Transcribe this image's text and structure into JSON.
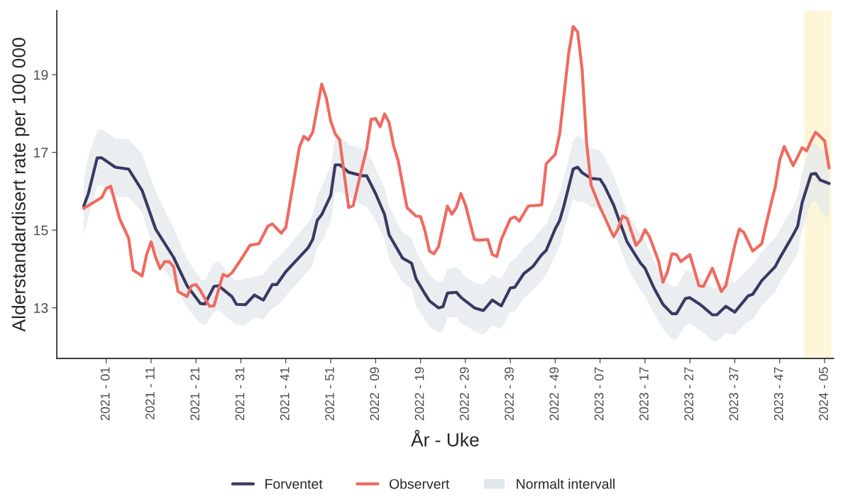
{
  "chart_data": {
    "type": "line",
    "xlabel": "År - Uke",
    "ylabel": "Alderstandardisert rate per 100 000",
    "xlim": [
      "2020-10-19",
      "2024-02-12"
    ],
    "ylim": [
      11.7,
      20.65
    ],
    "yticks": [
      13,
      15,
      17,
      19
    ],
    "xticks": [
      {
        "value": "2021-01-04",
        "label": "2021 - 01"
      },
      {
        "value": "2021-03-15",
        "label": "2021 - 11"
      },
      {
        "value": "2021-05-24",
        "label": "2021 - 21"
      },
      {
        "value": "2021-08-02",
        "label": "2021 - 31"
      },
      {
        "value": "2021-10-11",
        "label": "2021 - 41"
      },
      {
        "value": "2021-12-20",
        "label": "2021 - 51"
      },
      {
        "value": "2022-02-28",
        "label": "2022 - 09"
      },
      {
        "value": "2022-05-09",
        "label": "2022 - 19"
      },
      {
        "value": "2022-07-18",
        "label": "2022 - 29"
      },
      {
        "value": "2022-09-26",
        "label": "2022 - 39"
      },
      {
        "value": "2022-12-05",
        "label": "2022 - 49"
      },
      {
        "value": "2023-02-13",
        "label": "2023 - 07"
      },
      {
        "value": "2023-04-24",
        "label": "2023 - 17"
      },
      {
        "value": "2023-07-03",
        "label": "2023 - 27"
      },
      {
        "value": "2023-09-11",
        "label": "2023 - 37"
      },
      {
        "value": "2023-11-20",
        "label": "2023 - 47"
      },
      {
        "value": "2024-01-29",
        "label": "2024 - 05"
      }
    ],
    "annotations": [
      "Normalt intervall"
    ],
    "grid": false,
    "legend": "bottom",
    "line_style": "solid",
    "marker": "none",
    "bands": [
      {
        "axis": "x",
        "from": "2023-12-28T12:00",
        "to": "2024-02-08T12:00",
        "color": "#fdf6d8"
      }
    ],
    "series": [
      {
        "name": "Forventet",
        "color": "#383a63",
        "x": [
          "2020-11-30",
          "2020-12-07",
          "2020-12-21",
          "2020-12-28",
          "2021-01-18",
          "2021-02-08",
          "2021-03-01",
          "2021-03-22",
          "2021-04-19",
          "2021-05-10",
          "2021-05-31",
          "2021-06-07",
          "2021-06-21",
          "2021-06-28",
          "2021-07-19",
          "2021-07-26",
          "2021-08-09",
          "2021-08-23",
          "2021-09-06",
          "2021-09-20",
          "2021-09-27",
          "2021-10-11",
          "2021-11-15",
          "2021-11-22",
          "2021-11-29",
          "2021-12-06",
          "2021-12-20",
          "2021-12-27",
          "2022-01-03",
          "2022-01-17",
          "2022-02-07",
          "2022-02-14",
          "2022-02-28",
          "2022-03-14",
          "2022-03-21",
          "2022-04-11",
          "2022-04-25",
          "2022-05-02",
          "2022-05-16",
          "2022-05-23",
          "2022-06-06",
          "2022-06-13",
          "2022-06-20",
          "2022-07-04",
          "2022-07-11",
          "2022-07-18",
          "2022-08-01",
          "2022-08-15",
          "2022-08-29",
          "2022-09-12",
          "2022-09-26",
          "2022-10-03",
          "2022-10-17",
          "2022-10-31",
          "2022-11-14",
          "2022-11-21",
          "2022-12-05",
          "2022-12-12",
          "2022-12-19",
          "2023-01-02",
          "2023-01-09",
          "2023-01-16",
          "2023-01-30",
          "2023-02-13",
          "2023-02-20",
          "2023-03-06",
          "2023-03-27",
          "2023-04-17",
          "2023-04-24",
          "2023-05-08",
          "2023-05-22",
          "2023-06-05",
          "2023-06-12",
          "2023-06-26",
          "2023-07-03",
          "2023-07-17",
          "2023-07-24",
          "2023-08-07",
          "2023-08-14",
          "2023-08-28",
          "2023-09-11",
          "2023-10-02",
          "2023-10-09",
          "2023-10-23",
          "2023-11-13",
          "2023-11-20",
          "2023-12-11",
          "2023-12-18",
          "2023-12-25",
          "2024-01-08",
          "2024-01-15",
          "2024-01-22",
          "2024-02-05"
        ],
        "values": [
          15.62,
          15.93,
          16.86,
          16.86,
          16.62,
          16.57,
          16.02,
          15.03,
          14.3,
          13.57,
          13.11,
          13.1,
          13.55,
          13.57,
          13.29,
          13.09,
          13.08,
          13.33,
          13.2,
          13.6,
          13.6,
          13.93,
          14.55,
          14.76,
          15.25,
          15.4,
          15.89,
          16.68,
          16.68,
          16.49,
          16.4,
          16.4,
          15.94,
          15.4,
          14.88,
          14.28,
          14.15,
          13.75,
          13.36,
          13.18,
          13.0,
          13.03,
          13.38,
          13.4,
          13.27,
          13.18,
          13.0,
          12.93,
          13.2,
          13.05,
          13.51,
          13.53,
          13.88,
          14.06,
          14.37,
          14.48,
          15.03,
          15.25,
          15.65,
          16.57,
          16.62,
          16.48,
          16.33,
          16.31,
          16.13,
          15.65,
          14.7,
          14.15,
          14.02,
          13.51,
          13.09,
          12.85,
          12.85,
          13.24,
          13.26,
          13.11,
          13.02,
          12.82,
          12.82,
          13.04,
          12.89,
          13.31,
          13.35,
          13.7,
          14.06,
          14.28,
          14.88,
          15.1,
          15.71,
          16.44,
          16.46,
          16.29,
          16.2
        ],
        "upper": [
          16.3,
          16.9,
          17.55,
          17.6,
          17.35,
          17.35,
          16.95,
          16.0,
          15.05,
          14.25,
          13.75,
          13.7,
          14.15,
          14.2,
          13.75,
          13.7,
          13.75,
          13.8,
          13.85,
          14.2,
          14.25,
          14.5,
          15.2,
          15.4,
          15.9,
          16.1,
          16.65,
          17.35,
          17.45,
          17.2,
          17.1,
          17.05,
          16.6,
          16.1,
          15.6,
          14.95,
          14.8,
          14.45,
          14.05,
          13.85,
          13.65,
          13.7,
          14.0,
          14.05,
          13.95,
          13.8,
          13.65,
          13.6,
          13.85,
          13.75,
          14.2,
          14.25,
          14.55,
          14.75,
          15.05,
          15.15,
          15.7,
          15.95,
          16.4,
          17.3,
          17.45,
          17.35,
          17.1,
          17.05,
          16.9,
          16.4,
          15.45,
          14.9,
          14.75,
          14.2,
          13.75,
          13.55,
          13.55,
          13.95,
          13.95,
          13.8,
          13.7,
          13.5,
          13.5,
          13.7,
          13.65,
          14.0,
          14.1,
          14.45,
          14.8,
          15.0,
          15.6,
          15.85,
          16.5,
          17.2,
          17.25,
          17.1,
          16.95
        ],
        "lower": [
          14.9,
          15.3,
          16.15,
          16.15,
          15.85,
          15.85,
          15.45,
          14.3,
          13.65,
          13.0,
          12.6,
          12.55,
          12.9,
          12.95,
          12.65,
          12.55,
          12.55,
          12.75,
          12.7,
          13.0,
          13.05,
          13.3,
          13.95,
          14.1,
          14.55,
          14.7,
          15.2,
          15.95,
          16.0,
          15.85,
          15.65,
          15.6,
          15.25,
          14.75,
          14.25,
          13.65,
          13.5,
          13.05,
          12.7,
          12.5,
          12.36,
          12.4,
          12.75,
          12.75,
          12.6,
          12.55,
          12.4,
          12.3,
          12.55,
          12.45,
          12.9,
          12.9,
          13.25,
          13.45,
          13.7,
          13.85,
          14.35,
          14.6,
          15.0,
          15.8,
          15.72,
          15.75,
          15.6,
          15.55,
          15.45,
          15.0,
          14.05,
          13.45,
          13.3,
          12.85,
          12.45,
          12.2,
          12.2,
          12.55,
          12.6,
          12.45,
          12.35,
          12.15,
          12.15,
          12.35,
          12.3,
          12.65,
          12.7,
          13.05,
          13.4,
          13.65,
          14.2,
          14.4,
          15.0,
          15.7,
          15.75,
          15.5,
          15.3
        ]
      },
      {
        "name": "Observert",
        "color": "#ef6a60",
        "x": [
          "2020-11-30",
          "2020-12-28",
          "2021-01-04",
          "2021-01-11",
          "2021-01-25",
          "2021-02-08",
          "2021-02-15",
          "2021-03-01",
          "2021-03-08",
          "2021-03-15",
          "2021-03-22",
          "2021-03-29",
          "2021-04-05",
          "2021-04-12",
          "2021-04-19",
          "2021-04-26",
          "2021-05-10",
          "2021-05-17",
          "2021-05-24",
          "2021-05-31",
          "2021-06-14",
          "2021-06-21",
          "2021-07-05",
          "2021-07-12",
          "2021-07-19",
          "2021-08-02",
          "2021-08-16",
          "2021-08-30",
          "2021-09-13",
          "2021-09-20",
          "2021-10-04",
          "2021-10-11",
          "2021-11-01",
          "2021-11-08",
          "2021-11-15",
          "2021-11-22",
          "2021-12-06",
          "2021-12-13",
          "2021-12-20",
          "2021-12-27",
          "2022-01-03",
          "2022-01-17",
          "2022-01-24",
          "2022-02-07",
          "2022-02-14",
          "2022-02-21",
          "2022-02-28",
          "2022-03-07",
          "2022-03-14",
          "2022-03-21",
          "2022-03-28",
          "2022-04-04",
          "2022-04-18",
          "2022-05-02",
          "2022-05-09",
          "2022-05-16",
          "2022-05-23",
          "2022-05-30",
          "2022-06-06",
          "2022-06-20",
          "2022-06-27",
          "2022-07-04",
          "2022-07-11",
          "2022-07-18",
          "2022-08-01",
          "2022-08-08",
          "2022-08-22",
          "2022-08-29",
          "2022-09-05",
          "2022-09-12",
          "2022-09-26",
          "2022-10-03",
          "2022-10-10",
          "2022-10-24",
          "2022-11-14",
          "2022-11-21",
          "2022-12-05",
          "2022-12-12",
          "2022-12-26",
          "2023-01-02",
          "2023-01-09",
          "2023-01-16",
          "2023-01-23",
          "2023-01-30",
          "2023-02-13",
          "2023-02-20",
          "2023-03-06",
          "2023-03-13",
          "2023-03-20",
          "2023-03-27",
          "2023-04-10",
          "2023-04-17",
          "2023-04-24",
          "2023-05-01",
          "2023-05-15",
          "2023-05-22",
          "2023-05-29",
          "2023-06-05",
          "2023-06-12",
          "2023-06-19",
          "2023-07-03",
          "2023-07-17",
          "2023-07-24",
          "2023-08-07",
          "2023-08-21",
          "2023-08-28",
          "2023-09-11",
          "2023-09-18",
          "2023-09-25",
          "2023-10-09",
          "2023-10-23",
          "2023-10-30",
          "2023-11-06",
          "2023-11-13",
          "2023-11-20",
          "2023-11-27",
          "2023-12-11",
          "2023-12-25",
          "2024-01-01",
          "2024-01-08",
          "2024-01-15",
          "2024-01-29",
          "2024-02-05"
        ],
        "values": [
          15.56,
          15.84,
          16.07,
          16.13,
          15.29,
          14.79,
          13.97,
          13.82,
          14.37,
          14.7,
          14.3,
          14.01,
          14.19,
          14.19,
          14.06,
          13.42,
          13.29,
          13.57,
          13.6,
          13.44,
          13.04,
          13.05,
          13.86,
          13.81,
          13.9,
          14.24,
          14.61,
          14.65,
          15.1,
          15.16,
          14.92,
          15.07,
          17.12,
          17.41,
          17.32,
          17.52,
          18.76,
          18.41,
          17.81,
          17.48,
          17.32,
          15.58,
          15.63,
          16.62,
          17.08,
          17.85,
          17.87,
          17.66,
          17.99,
          17.77,
          17.17,
          16.8,
          15.58,
          15.36,
          15.35,
          14.98,
          14.46,
          14.39,
          14.57,
          15.62,
          15.41,
          15.58,
          15.94,
          15.65,
          14.76,
          14.74,
          14.76,
          14.37,
          14.32,
          14.76,
          15.29,
          15.34,
          15.23,
          15.62,
          15.65,
          16.71,
          16.95,
          17.48,
          19.55,
          20.24,
          20.1,
          19.13,
          17.23,
          16.16,
          15.58,
          15.34,
          14.83,
          15.03,
          15.36,
          15.3,
          14.61,
          14.74,
          15.01,
          14.83,
          14.21,
          13.66,
          13.93,
          14.39,
          14.37,
          14.19,
          14.37,
          13.57,
          13.55,
          14.02,
          13.42,
          13.57,
          14.61,
          15.03,
          14.94,
          14.46,
          14.65,
          15.16,
          15.65,
          16.11,
          16.8,
          17.15,
          16.66,
          17.12,
          17.04,
          17.3,
          17.52,
          17.3,
          16.6
        ]
      }
    ]
  }
}
